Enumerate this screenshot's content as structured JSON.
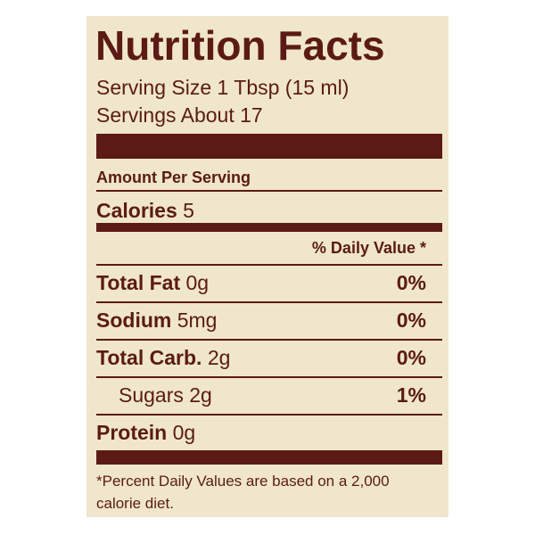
{
  "title": "Nutrition Facts",
  "serving_size": "Serving Size 1 Tbsp (15 ml)",
  "servings": "Servings About 17",
  "amount_per_serving": "Amount Per Serving",
  "calories": {
    "label": "Calories",
    "value": "5"
  },
  "daily_value_header": "% Daily Value *",
  "rows": [
    {
      "label": "Total Fat",
      "amount": "0g",
      "dv": "0%"
    },
    {
      "label": "Sodium",
      "amount": "5mg",
      "dv": "0%"
    },
    {
      "label": "Total Carb.",
      "amount": "2g",
      "dv": "0%"
    },
    {
      "label": "Sugars 2g",
      "dv": "1%"
    },
    {
      "label": "Protein",
      "amount": "0g"
    }
  ],
  "footnote": [
    "*Percent Daily Values are based on a 2,000",
    "calorie diet."
  ]
}
